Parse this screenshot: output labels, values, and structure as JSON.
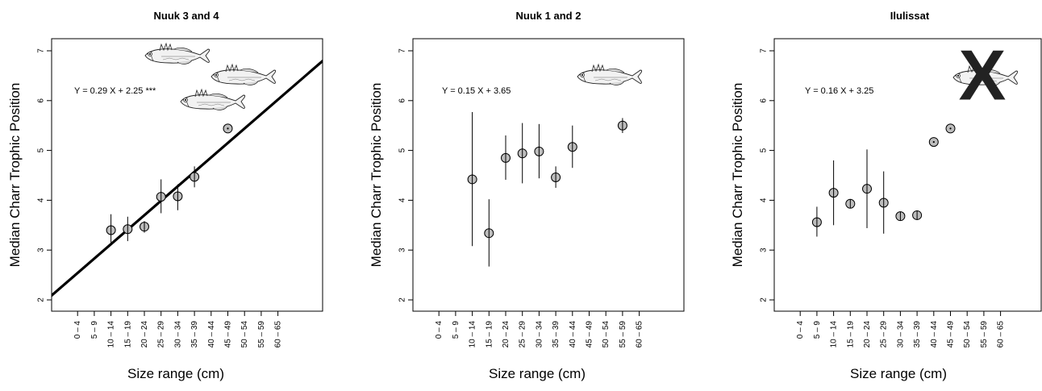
{
  "chart_data": [
    {
      "type": "scatter",
      "title": "Nuuk 3 and 4",
      "xlabel": "Size range (cm)",
      "ylabel": "Median Charr Trophic Position",
      "categories": [
        "0 – 4",
        "5 – 9",
        "10 – 14",
        "15 – 19",
        "20 – 24",
        "25 – 29",
        "30 – 34",
        "35 – 39",
        "40 – 44",
        "45 – 49",
        "50 – 54",
        "55 – 59",
        "60 – 65"
      ],
      "yticks": [
        "2",
        "3",
        "4",
        "5",
        "6",
        "7"
      ],
      "ylim": [
        2,
        7
      ],
      "equation": "Y =  0.29 X  +  2.25 ***",
      "regression": {
        "slope": 0.29,
        "intercept": 2.25
      },
      "points": [
        {
          "x": "10 – 14",
          "y": 3.4,
          "lo": 3.15,
          "hi": 3.72
        },
        {
          "x": "15 – 19",
          "y": 3.42,
          "lo": 3.18,
          "hi": 3.67
        },
        {
          "x": "20 – 24",
          "y": 3.47,
          "lo": 3.35,
          "hi": 3.58
        },
        {
          "x": "25 – 29",
          "y": 4.07,
          "lo": 3.74,
          "hi": 4.42
        },
        {
          "x": "30 – 34",
          "y": 4.08,
          "lo": 3.8,
          "hi": 4.32
        },
        {
          "x": "35 – 39",
          "y": 4.47,
          "lo": 4.26,
          "hi": 4.68
        },
        {
          "x": "45 – 49",
          "y": 5.44,
          "lo": 5.44,
          "hi": 5.44
        }
      ],
      "fish_icons": 3,
      "crossed_out": false
    },
    {
      "type": "scatter",
      "title": "Nuuk 1 and 2",
      "xlabel": "Size range (cm)",
      "ylabel": "Median Charr Trophic Position",
      "categories": [
        "0 – 4",
        "5 – 9",
        "10 – 14",
        "15 – 19",
        "20 – 24",
        "25 – 29",
        "30 – 34",
        "35 – 39",
        "40 – 44",
        "45 – 49",
        "50 – 54",
        "55 – 59",
        "60 – 65"
      ],
      "yticks": [
        "2",
        "3",
        "4",
        "5",
        "6",
        "7"
      ],
      "ylim": [
        2,
        7
      ],
      "equation": "Y =  0.15 X  +  3.65",
      "regression": null,
      "points": [
        {
          "x": "10 – 14",
          "y": 4.42,
          "lo": 3.08,
          "hi": 5.77
        },
        {
          "x": "15 – 19",
          "y": 3.34,
          "lo": 2.67,
          "hi": 4.02
        },
        {
          "x": "20 – 24",
          "y": 4.85,
          "lo": 4.41,
          "hi": 5.3
        },
        {
          "x": "25 – 29",
          "y": 4.94,
          "lo": 4.34,
          "hi": 5.55
        },
        {
          "x": "30 – 34",
          "y": 4.98,
          "lo": 4.44,
          "hi": 5.53
        },
        {
          "x": "35 – 39",
          "y": 4.46,
          "lo": 4.25,
          "hi": 4.68
        },
        {
          "x": "40 – 44",
          "y": 5.07,
          "lo": 4.65,
          "hi": 5.5
        },
        {
          "x": "55 – 59",
          "y": 5.5,
          "lo": 5.35,
          "hi": 5.65
        }
      ],
      "fish_icons": 1,
      "crossed_out": false
    },
    {
      "type": "scatter",
      "title": "Ilulissat",
      "xlabel": "Size range (cm)",
      "ylabel": "Median Charr Trophic Position",
      "categories": [
        "0 – 4",
        "5 – 9",
        "10 – 14",
        "15 – 19",
        "20 – 24",
        "25 – 29",
        "30 – 34",
        "35 – 39",
        "40 – 44",
        "45 – 49",
        "50 – 54",
        "55 – 59",
        "60 – 65"
      ],
      "yticks": [
        "2",
        "3",
        "4",
        "5",
        "6",
        "7"
      ],
      "ylim": [
        2,
        7
      ],
      "equation": "Y =  0.16 X  +  3.25",
      "regression": null,
      "points": [
        {
          "x": "5 – 9",
          "y": 3.56,
          "lo": 3.27,
          "hi": 3.87
        },
        {
          "x": "10 – 14",
          "y": 4.15,
          "lo": 3.5,
          "hi": 4.8
        },
        {
          "x": "15 – 19",
          "y": 3.93,
          "lo": 3.85,
          "hi": 4.0
        },
        {
          "x": "20 – 24",
          "y": 4.23,
          "lo": 3.44,
          "hi": 5.02
        },
        {
          "x": "25 – 29",
          "y": 3.95,
          "lo": 3.33,
          "hi": 4.58
        },
        {
          "x": "30 – 34",
          "y": 3.68,
          "lo": 3.6,
          "hi": 3.76
        },
        {
          "x": "35 – 39",
          "y": 3.7,
          "lo": 3.62,
          "hi": 3.78
        },
        {
          "x": "40 – 44",
          "y": 5.17,
          "lo": 5.17,
          "hi": 5.17
        },
        {
          "x": "45 – 49",
          "y": 5.44,
          "lo": 5.44,
          "hi": 5.44
        }
      ],
      "fish_icons": 1,
      "crossed_out": true,
      "cross_mark": "X"
    }
  ]
}
